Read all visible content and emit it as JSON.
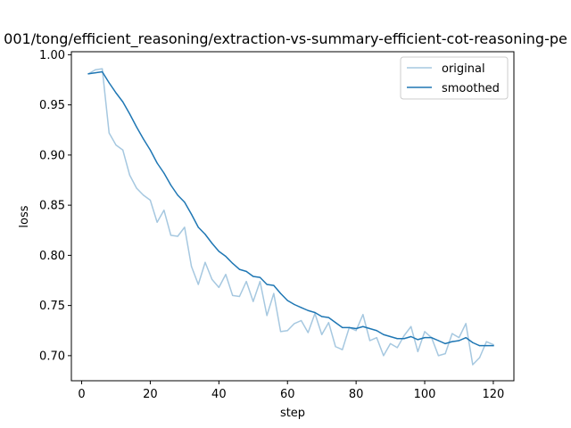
{
  "chart_data": {
    "type": "line",
    "title": "001/tong/efficient_reasoning/extraction-vs-summary-efficient-cot-reasoning-pe",
    "xlabel": "step",
    "ylabel": "loss",
    "xlim": [
      -3,
      126
    ],
    "ylim": [
      0.675,
      1.003
    ],
    "x_ticks": [
      0,
      20,
      40,
      60,
      80,
      100,
      120
    ],
    "x_tick_labels": [
      "0",
      "20",
      "40",
      "60",
      "80",
      "100",
      "120"
    ],
    "y_ticks": [
      0.7,
      0.75,
      0.8,
      0.85,
      0.9,
      0.95,
      1.0
    ],
    "y_tick_labels": [
      "0.70",
      "0.75",
      "0.80",
      "0.85",
      "0.90",
      "0.95",
      "1.00"
    ],
    "grid": false,
    "legend_position": "top-right",
    "x": [
      2,
      4,
      6,
      8,
      10,
      12,
      14,
      16,
      18,
      20,
      22,
      24,
      26,
      28,
      30,
      32,
      34,
      36,
      38,
      40,
      42,
      44,
      46,
      48,
      50,
      52,
      54,
      56,
      58,
      60,
      62,
      64,
      66,
      68,
      70,
      72,
      74,
      76,
      78,
      80,
      82,
      84,
      86,
      88,
      90,
      92,
      94,
      96,
      98,
      100,
      102,
      104,
      106,
      108,
      110,
      112,
      114,
      116,
      118,
      120
    ],
    "series": [
      {
        "name": "original",
        "color": "#a6c8e0",
        "values": [
          0.981,
          0.985,
          0.986,
          0.922,
          0.91,
          0.905,
          0.88,
          0.867,
          0.86,
          0.855,
          0.833,
          0.845,
          0.82,
          0.819,
          0.828,
          0.789,
          0.771,
          0.793,
          0.776,
          0.768,
          0.781,
          0.76,
          0.759,
          0.774,
          0.754,
          0.774,
          0.74,
          0.762,
          0.724,
          0.725,
          0.732,
          0.735,
          0.723,
          0.742,
          0.721,
          0.733,
          0.709,
          0.706,
          0.728,
          0.725,
          0.741,
          0.715,
          0.718,
          0.7,
          0.712,
          0.708,
          0.72,
          0.729,
          0.704,
          0.724,
          0.718,
          0.7,
          0.702,
          0.722,
          0.718,
          0.732,
          0.691,
          0.698,
          0.714,
          0.711
        ]
      },
      {
        "name": "smoothed",
        "color": "#1f77b4",
        "values": [
          0.981,
          0.982,
          0.983,
          0.972,
          0.962,
          0.953,
          0.941,
          0.928,
          0.916,
          0.905,
          0.892,
          0.882,
          0.87,
          0.86,
          0.853,
          0.841,
          0.828,
          0.821,
          0.812,
          0.804,
          0.799,
          0.792,
          0.786,
          0.784,
          0.779,
          0.778,
          0.771,
          0.77,
          0.762,
          0.755,
          0.751,
          0.748,
          0.745,
          0.743,
          0.739,
          0.738,
          0.733,
          0.728,
          0.728,
          0.727,
          0.729,
          0.727,
          0.725,
          0.721,
          0.719,
          0.717,
          0.717,
          0.719,
          0.716,
          0.718,
          0.718,
          0.715,
          0.712,
          0.714,
          0.715,
          0.718,
          0.713,
          0.71,
          0.71,
          0.71
        ]
      }
    ]
  }
}
